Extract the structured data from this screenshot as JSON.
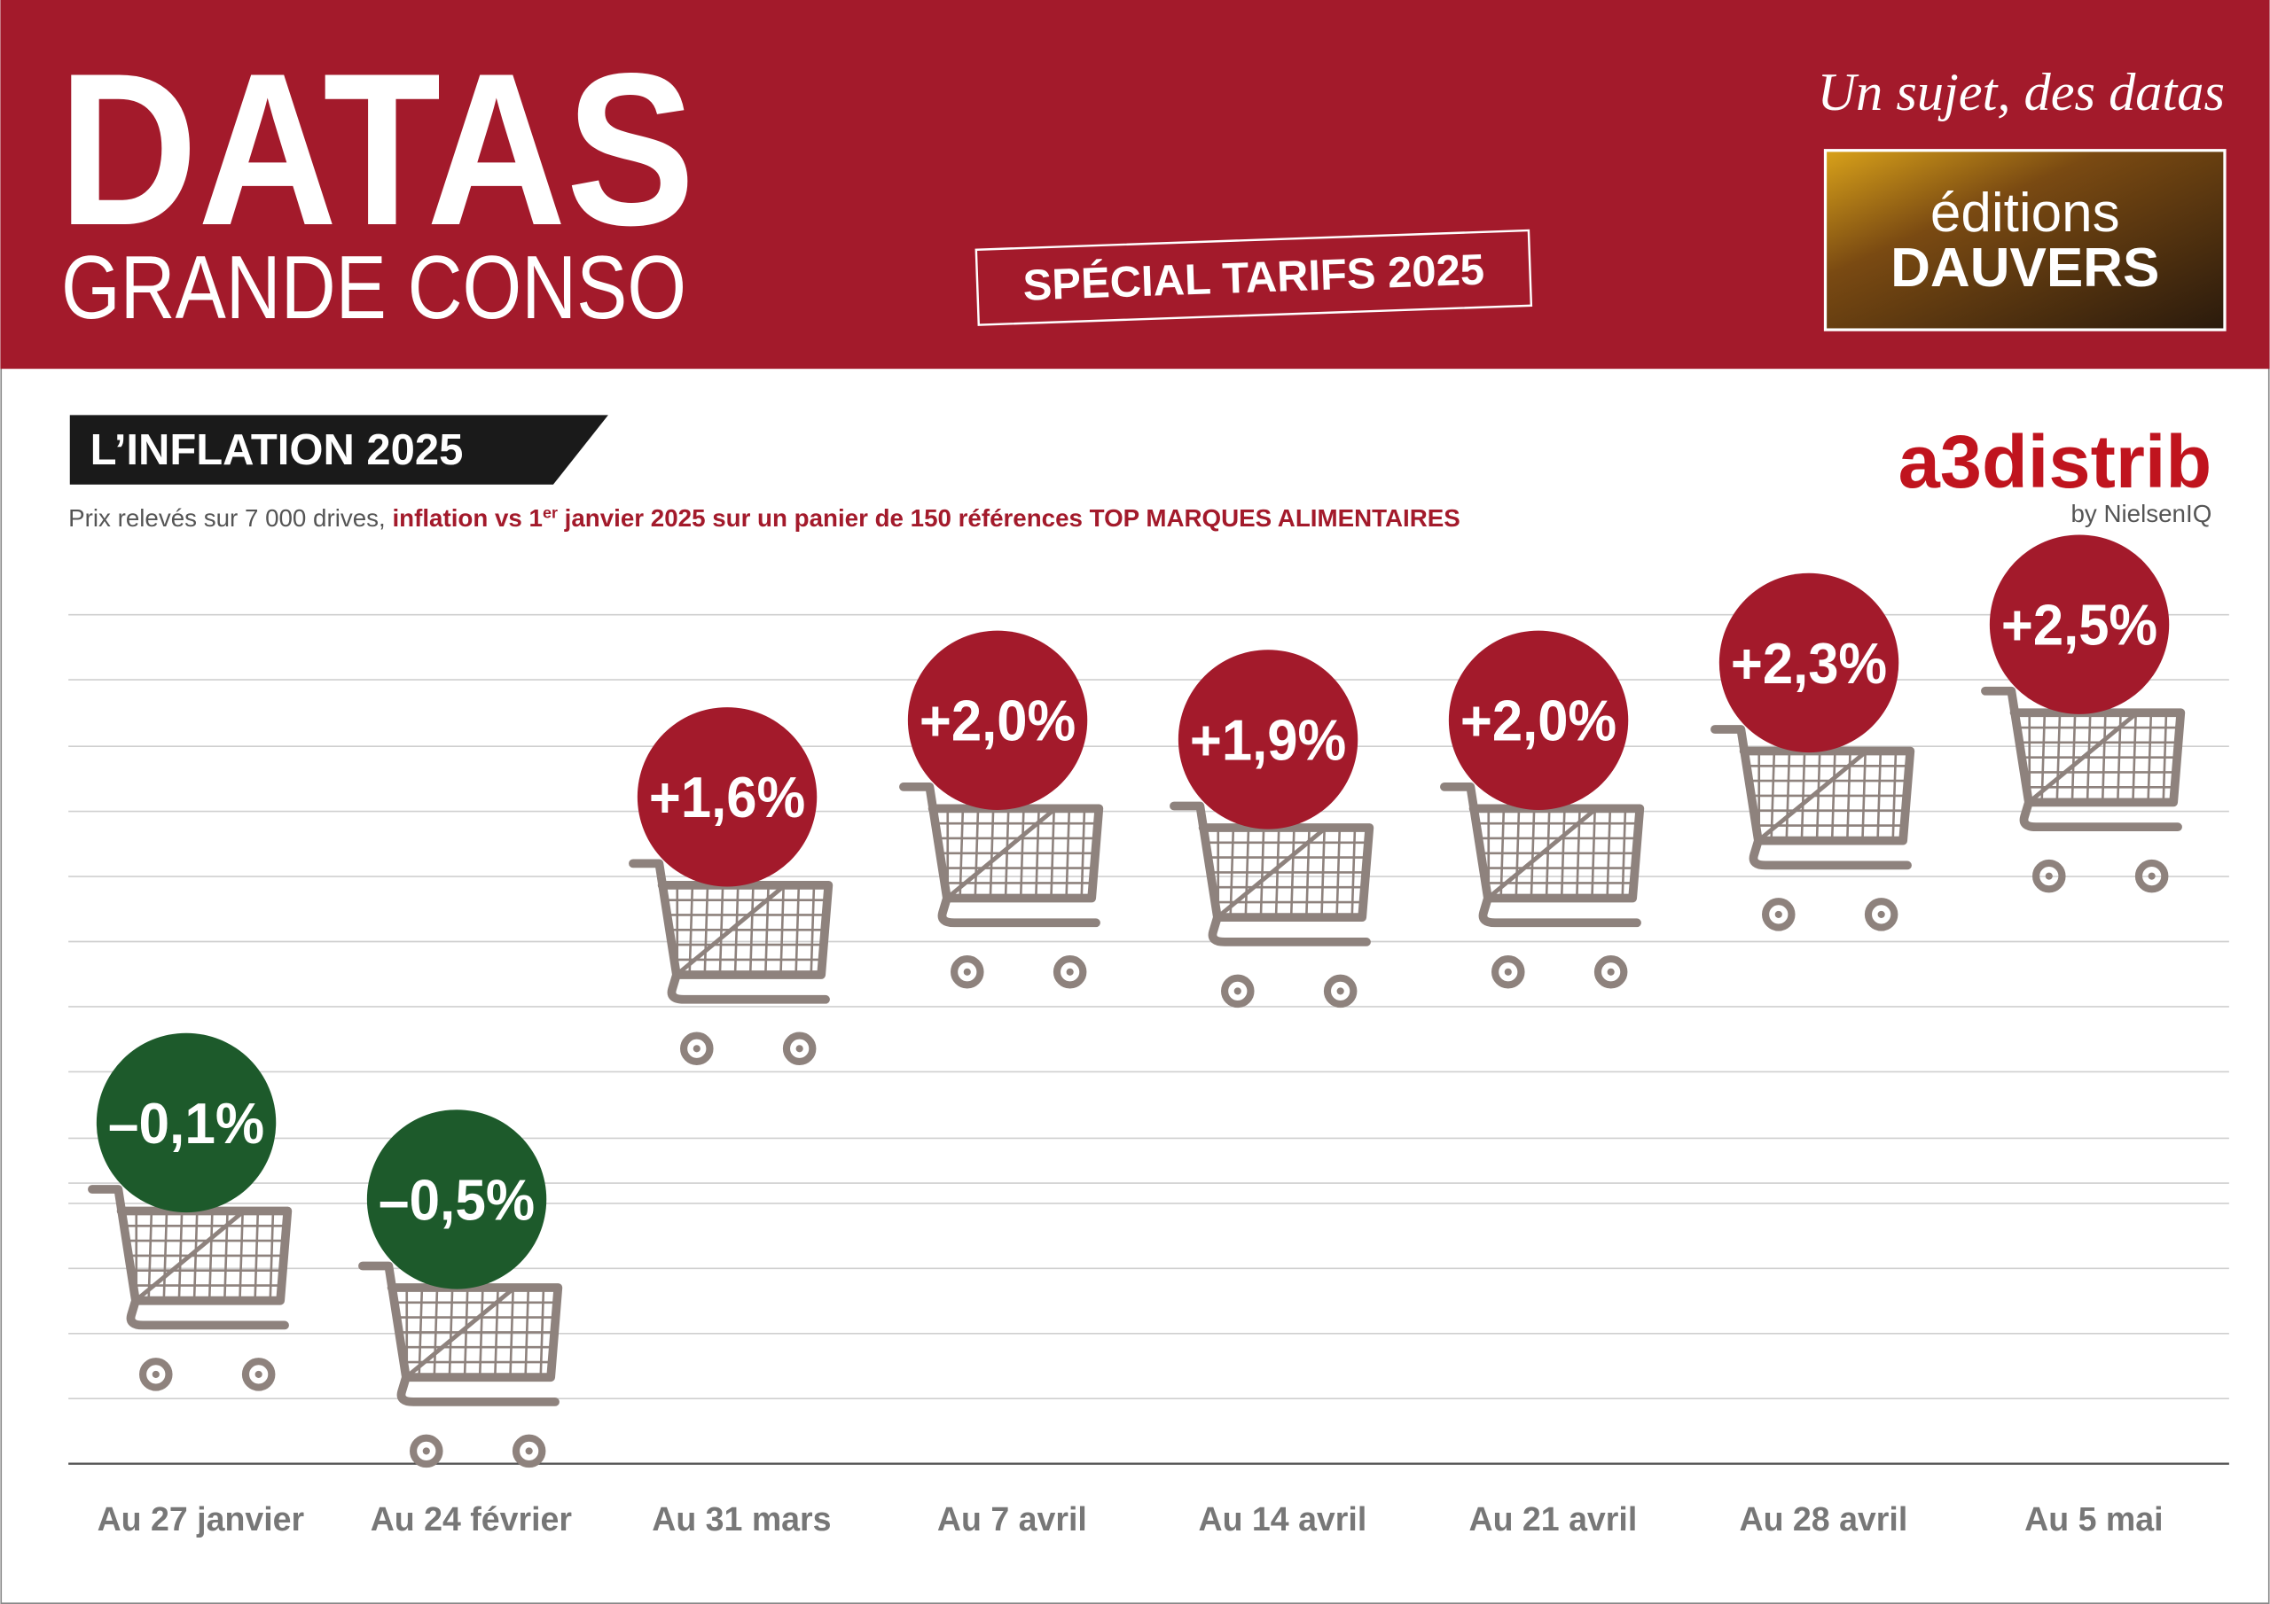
{
  "header": {
    "brand": "DATAS",
    "brand_sub": "GRANDE CONSO",
    "badge": "SPÉCIAL TARIFS 2025",
    "tagline": "Un sujet, des datas",
    "publisher_top": "éditions",
    "publisher_bottom": "DAUVERS"
  },
  "source": {
    "name": "a3distrib",
    "by": "by NielsenIQ"
  },
  "chart_data": {
    "type": "cart-pictogram",
    "title": "L’INFLATION 2025",
    "subtitle_parts": [
      "Prix relevés sur 7 000 drives, ",
      "inflation vs 1",
      "er",
      " janvier 2025 sur un panier de 150 références TOP MARQUES ALIMENTAIRES"
    ],
    "categories": [
      "Au 27 janvier",
      "Au 24 février",
      "Au 31 mars",
      "Au 7 avril",
      "Au 14 avril",
      "Au 21 avril",
      "Au 28 avril",
      "Au 5 mai"
    ],
    "values": [
      -0.1,
      -0.5,
      1.6,
      2.0,
      1.9,
      2.0,
      2.3,
      2.5
    ],
    "value_labels": [
      "–0,1%",
      "–0,5%",
      "+1,6%",
      "+2,0%",
      "+1,9%",
      "+2,0%",
      "+2,3%",
      "+2,5%"
    ],
    "positive_color": "#a31a2b",
    "negative_color": "#1d5a2b",
    "cart_color": "#8e827d"
  }
}
